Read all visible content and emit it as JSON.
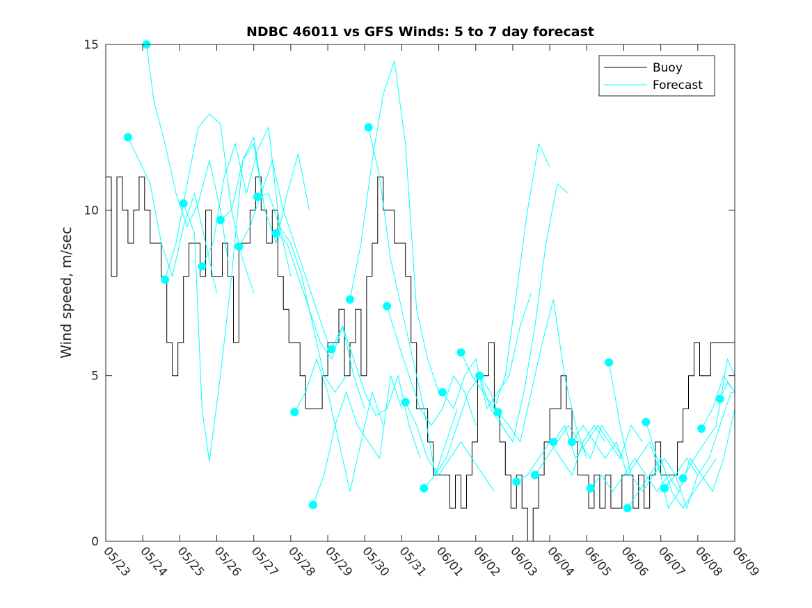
{
  "chart_data": {
    "type": "line",
    "title": "NDBC 46011 vs GFS Winds: 5 to 7 day forecast",
    "xlabel": "",
    "ylabel": "Wind speed, m/sec",
    "x_tick_labels": [
      "05/23",
      "05/24",
      "05/25",
      "05/26",
      "05/27",
      "05/28",
      "05/29",
      "05/30",
      "05/31",
      "06/01",
      "06/02",
      "06/03",
      "06/04",
      "06/05",
      "06/06",
      "06/07",
      "06/08",
      "06/09"
    ],
    "y_tick_labels": [
      "0",
      "5",
      "10",
      "15"
    ],
    "xlim_days": [
      0,
      17
    ],
    "ylim": [
      0,
      15
    ],
    "legend": {
      "placement": "top-right",
      "entries": [
        "Buoy",
        "Forecast"
      ]
    },
    "colors": {
      "buoy": "#000000",
      "forecast": "#00ffff",
      "markers": "#00ffff"
    },
    "series": [
      {
        "name": "Buoy",
        "color": "#000000",
        "x": [
          0.0,
          0.15,
          0.3,
          0.45,
          0.6,
          0.75,
          0.9,
          1.05,
          1.2,
          1.35,
          1.5,
          1.65,
          1.8,
          1.95,
          2.1,
          2.25,
          2.4,
          2.55,
          2.7,
          2.85,
          3.0,
          3.15,
          3.3,
          3.45,
          3.6,
          3.75,
          3.9,
          4.05,
          4.2,
          4.35,
          4.5,
          4.65,
          4.8,
          4.95,
          5.1,
          5.25,
          5.4,
          5.55,
          5.7,
          5.85,
          6.0,
          6.15,
          6.3,
          6.45,
          6.6,
          6.75,
          6.9,
          7.05,
          7.2,
          7.35,
          7.5,
          7.65,
          7.8,
          7.95,
          8.1,
          8.25,
          8.4,
          8.55,
          8.7,
          8.85,
          9.0,
          9.15,
          9.3,
          9.45,
          9.6,
          9.75,
          9.9,
          10.05,
          10.2,
          10.35,
          10.5,
          10.65,
          10.8,
          10.95,
          11.1,
          11.25,
          11.4,
          11.55,
          11.7,
          11.85,
          12.0,
          12.15,
          12.3,
          12.45,
          12.6,
          12.75,
          12.9,
          13.05,
          13.2,
          13.35,
          13.5,
          13.65,
          13.8,
          13.95,
          14.1,
          14.25,
          14.4,
          14.55,
          14.7,
          14.85,
          15.0,
          15.15,
          15.3,
          15.45,
          15.6,
          15.75,
          15.9,
          16.05,
          16.2,
          16.35
        ],
        "values": [
          11,
          8,
          11,
          10,
          9,
          10,
          11,
          10,
          9,
          9,
          8,
          6,
          5,
          6,
          8,
          9,
          9,
          8,
          10,
          8,
          8,
          9,
          8,
          6,
          9,
          9,
          10,
          11,
          10,
          9,
          10,
          8,
          7,
          6,
          6,
          5,
          4,
          4,
          4,
          5,
          6,
          6,
          7,
          5,
          6,
          7,
          5,
          8,
          9,
          11,
          10,
          10,
          9,
          9,
          8,
          6,
          4,
          4,
          3,
          2,
          2,
          2,
          1,
          2,
          1,
          2,
          3,
          5,
          5,
          6,
          4,
          3,
          2,
          1,
          2,
          1,
          0,
          1,
          2,
          3,
          4,
          4,
          5,
          4,
          3,
          2,
          2,
          1,
          2,
          1,
          2,
          1,
          1,
          2,
          2,
          1,
          2,
          1,
          2,
          3,
          2,
          2,
          2,
          3,
          4,
          5,
          6,
          5,
          5,
          6
        ]
      },
      {
        "name": "Forecast",
        "color": "#00ffff",
        "segments": [
          {
            "x": [
              0.6,
              0.9,
              1.2,
              1.5,
              1.8,
              2.1,
              2.4,
              2.7,
              3.0
            ],
            "values": [
              12.2,
              11.5,
              10.8,
              9.0,
              8.0,
              9.5,
              10.5,
              9.0,
              7.5
            ]
          },
          {
            "x": [
              1.1,
              1.3,
              1.6,
              1.9,
              2.2,
              2.5,
              2.8,
              3.1,
              3.3
            ],
            "values": [
              15.0,
              13.3,
              12.0,
              10.5,
              9.5,
              10.2,
              11.5,
              10.0,
              8.5
            ]
          },
          {
            "x": [
              1.6,
              1.9,
              2.2,
              2.5,
              2.8,
              3.1,
              3.4,
              3.7,
              4.0
            ],
            "values": [
              7.9,
              9.0,
              10.8,
              12.5,
              12.9,
              12.6,
              10.0,
              8.5,
              7.5
            ]
          },
          {
            "x": [
              2.1,
              2.4,
              2.6,
              2.8,
              3.1,
              3.4,
              3.7,
              4.0,
              4.3
            ],
            "values": [
              10.2,
              9.3,
              4.0,
              2.4,
              5.0,
              8.0,
              11.5,
              12.0,
              10.0
            ]
          },
          {
            "x": [
              2.6,
              2.9,
              3.2,
              3.5,
              3.8,
              4.1,
              4.4,
              4.7,
              5.0
            ],
            "values": [
              8.3,
              9.0,
              11.0,
              12.0,
              10.5,
              11.8,
              12.5,
              9.5,
              8.0
            ]
          },
          {
            "x": [
              3.1,
              3.4,
              3.7,
              4.0,
              4.3,
              4.6,
              4.9,
              5.2,
              5.5
            ],
            "values": [
              9.7,
              10.0,
              11.5,
              12.2,
              10.0,
              9.0,
              10.5,
              11.7,
              10.0
            ]
          },
          {
            "x": [
              3.6,
              3.9,
              4.2,
              4.5,
              4.8,
              5.1,
              5.4,
              5.7,
              6.0
            ],
            "values": [
              8.9,
              9.5,
              10.5,
              11.5,
              10.0,
              9.0,
              8.0,
              7.0,
              6.0
            ]
          },
          {
            "x": [
              4.1,
              4.4,
              4.7,
              5.0,
              5.3,
              5.6,
              5.9,
              6.2,
              6.5
            ],
            "values": [
              10.4,
              10.5,
              9.5,
              9.0,
              8.0,
              6.5,
              5.0,
              4.5,
              5.0
            ]
          },
          {
            "x": [
              4.6,
              4.9,
              5.2,
              5.5,
              5.8,
              6.1,
              6.4,
              6.7,
              7.0
            ],
            "values": [
              9.3,
              9.0,
              8.0,
              7.0,
              6.0,
              5.5,
              6.5,
              5.0,
              4.0
            ]
          },
          {
            "x": [
              5.1,
              5.4,
              5.7,
              6.0,
              6.3,
              6.6,
              6.9,
              7.2,
              7.5
            ],
            "values": [
              3.9,
              4.5,
              5.5,
              4.5,
              3.0,
              1.5,
              3.0,
              4.5,
              3.5
            ]
          },
          {
            "x": [
              5.6,
              5.9,
              6.2,
              6.5,
              6.8,
              7.1,
              7.4,
              7.7,
              8.0
            ],
            "values": [
              1.1,
              2.0,
              3.5,
              4.5,
              3.5,
              3.0,
              2.5,
              5.0,
              4.0
            ]
          },
          {
            "x": [
              6.1,
              6.4,
              6.7,
              7.0,
              7.3,
              7.6,
              7.9,
              8.2,
              8.5
            ],
            "values": [
              5.8,
              6.5,
              5.5,
              4.5,
              3.8,
              4.0,
              5.0,
              3.5,
              2.5
            ]
          },
          {
            "x": [
              6.6,
              6.9,
              7.2,
              7.5,
              7.8,
              8.1,
              8.4,
              8.7,
              9.0
            ],
            "values": [
              7.3,
              9.0,
              11.5,
              13.5,
              14.5,
              12.0,
              7.0,
              5.5,
              4.5
            ]
          },
          {
            "x": [
              7.1,
              7.4,
              7.7,
              8.0,
              8.3,
              8.6,
              8.9,
              9.2,
              9.5
            ],
            "values": [
              12.5,
              11.0,
              8.5,
              7.0,
              5.5,
              4.0,
              2.0,
              3.0,
              4.0
            ]
          },
          {
            "x": [
              7.6,
              7.9,
              8.2,
              8.5,
              8.8,
              9.1,
              9.4,
              9.7,
              10.0
            ],
            "values": [
              7.1,
              6.0,
              5.0,
              4.0,
              3.5,
              4.0,
              5.0,
              4.5,
              3.5
            ]
          },
          {
            "x": [
              8.1,
              8.4,
              8.7,
              9.0,
              9.3,
              9.6,
              9.9,
              10.2,
              10.5
            ],
            "values": [
              4.2,
              3.5,
              2.5,
              2.0,
              2.5,
              3.0,
              2.5,
              2.0,
              1.5
            ]
          },
          {
            "x": [
              8.6,
              8.9,
              9.2,
              9.5,
              9.8,
              10.1,
              10.4,
              10.7,
              11.0
            ],
            "values": [
              1.6,
              2.0,
              2.5,
              3.5,
              4.5,
              5.0,
              4.0,
              3.5,
              3.0
            ]
          },
          {
            "x": [
              9.1,
              9.4,
              9.7,
              10.0,
              10.3,
              10.6,
              10.9,
              11.2,
              11.5
            ],
            "values": [
              4.5,
              4.0,
              5.0,
              5.5,
              4.0,
              4.5,
              5.0,
              6.5,
              7.5
            ]
          },
          {
            "x": [
              9.6,
              9.9,
              10.2,
              10.5,
              10.8,
              11.1,
              11.4,
              11.7,
              12.0
            ],
            "values": [
              5.7,
              5.0,
              4.5,
              4.0,
              5.0,
              7.5,
              10.0,
              12.0,
              11.3
            ]
          },
          {
            "x": [
              10.1,
              10.4,
              10.7,
              11.0,
              11.3,
              11.6,
              11.9,
              12.2,
              12.5
            ],
            "values": [
              5.0,
              4.5,
              3.5,
              3.0,
              4.5,
              6.5,
              9.0,
              10.8,
              10.5
            ]
          },
          {
            "x": [
              10.6,
              10.9,
              11.2,
              11.5,
              11.8,
              12.1,
              12.4,
              12.7,
              13.0
            ],
            "values": [
              3.9,
              3.5,
              3.0,
              4.5,
              6.0,
              7.3,
              5.0,
              3.5,
              2.5
            ]
          },
          {
            "x": [
              11.1,
              11.4,
              11.7,
              12.0,
              12.3,
              12.6,
              12.9,
              13.2,
              13.5
            ],
            "values": [
              1.8,
              2.0,
              2.5,
              3.0,
              2.5,
              2.0,
              3.0,
              3.5,
              3.0
            ]
          },
          {
            "x": [
              11.6,
              11.9,
              12.2,
              12.5,
              12.8,
              13.1,
              13.4,
              13.7,
              14.0
            ],
            "values": [
              2.0,
              2.5,
              3.0,
              3.5,
              3.0,
              2.5,
              3.5,
              3.0,
              2.5
            ]
          },
          {
            "x": [
              12.1,
              12.4,
              12.7,
              13.0,
              13.3,
              13.6,
              13.9,
              14.2,
              14.5
            ],
            "values": [
              3.0,
              3.5,
              2.5,
              3.0,
              3.5,
              3.0,
              2.5,
              3.5,
              3.0
            ]
          },
          {
            "x": [
              12.6,
              12.9,
              13.2,
              13.5,
              13.8,
              14.1,
              14.4,
              14.7,
              15.0
            ],
            "values": [
              3.0,
              3.5,
              3.0,
              2.5,
              3.0,
              2.0,
              2.5,
              3.0,
              2.0
            ]
          },
          {
            "x": [
              13.1,
              13.4,
              13.7,
              14.0,
              14.3,
              14.6,
              14.9,
              15.2,
              15.5
            ],
            "values": [
              1.6,
              2.0,
              1.5,
              2.0,
              2.5,
              2.0,
              1.5,
              2.0,
              1.5
            ]
          },
          {
            "x": [
              13.6,
              13.9,
              14.2,
              14.5,
              14.8,
              15.1,
              15.4,
              15.7,
              16.0
            ],
            "values": [
              5.4,
              3.5,
              2.0,
              1.5,
              2.0,
              2.5,
              2.0,
              1.0,
              2.0
            ]
          },
          {
            "x": [
              14.1,
              14.4,
              14.7,
              15.0,
              15.3,
              15.6,
              15.9,
              16.2,
              16.5
            ],
            "values": [
              1.0,
              1.5,
              2.0,
              2.5,
              1.5,
              1.0,
              1.5,
              2.0,
              2.5
            ]
          },
          {
            "x": [
              14.6,
              14.9,
              15.2,
              15.5,
              15.8,
              16.1,
              16.4,
              16.7,
              17.0
            ],
            "values": [
              3.6,
              2.5,
              1.0,
              1.5,
              2.5,
              2.0,
              1.5,
              2.5,
              4.0
            ]
          },
          {
            "x": [
              15.1,
              15.4,
              15.7,
              16.0,
              16.3,
              16.6,
              16.9,
              17.0
            ],
            "values": [
              1.6,
              2.0,
              2.5,
              2.0,
              2.5,
              3.5,
              4.5,
              4.5
            ]
          },
          {
            "x": [
              15.6,
              15.9,
              16.2,
              16.5,
              16.8,
              17.0
            ],
            "values": [
              1.9,
              2.5,
              3.0,
              3.5,
              5.5,
              5.0
            ]
          },
          {
            "x": [
              16.1,
              16.4,
              16.7,
              17.0
            ],
            "values": [
              3.4,
              4.0,
              5.0,
              4.5
            ]
          },
          {
            "x": [
              16.6,
              16.8,
              17.0
            ],
            "values": [
              4.3,
              4.8,
              4.5
            ]
          }
        ]
      }
    ]
  }
}
